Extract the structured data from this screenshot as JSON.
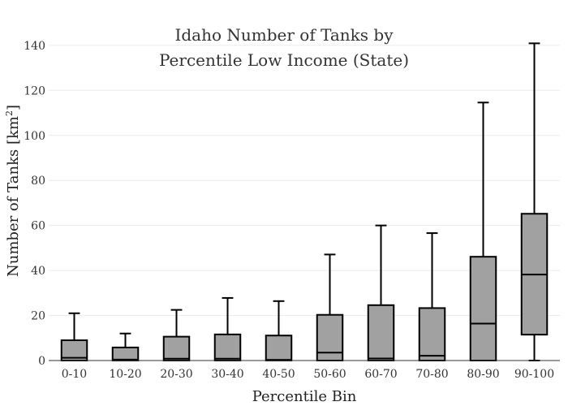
{
  "chart_data": {
    "type": "box",
    "title_line1": "Idaho Number of Tanks by",
    "title_line2": "Percentile Low Income (State)",
    "xlabel": "Percentile Bin",
    "ylabel_main": "Number of Tanks  [km",
    "ylabel_sup": "2",
    "ylabel_end": "]",
    "ylim": [
      0,
      145
    ],
    "yticks": [
      0,
      20,
      40,
      60,
      80,
      100,
      120,
      140
    ],
    "grid": true,
    "colors": {
      "box_fill": "#a1a1a1",
      "box_stroke": "#000000",
      "grid": "#ececec"
    },
    "categories": [
      "0-10",
      "10-20",
      "20-30",
      "30-40",
      "40-50",
      "50-60",
      "60-70",
      "70-80",
      "80-90",
      "90-100"
    ],
    "boxes": [
      {
        "min": 0,
        "q1": 0,
        "median": 1.2,
        "q3": 9,
        "max": 21
      },
      {
        "min": 0,
        "q1": 0,
        "median": 0.4,
        "q3": 5.8,
        "max": 12
      },
      {
        "min": 0,
        "q1": 0,
        "median": 0.8,
        "q3": 10.6,
        "max": 22.5
      },
      {
        "min": 0,
        "q1": 0,
        "median": 0.8,
        "q3": 11.6,
        "max": 27.8
      },
      {
        "min": 0,
        "q1": 0,
        "median": 0.3,
        "q3": 11.1,
        "max": 26.4
      },
      {
        "min": 0,
        "q1": 0,
        "median": 3.5,
        "q3": 20.3,
        "max": 47.1
      },
      {
        "min": 0,
        "q1": 0,
        "median": 0.9,
        "q3": 24.6,
        "max": 60
      },
      {
        "min": 0,
        "q1": 0,
        "median": 2.1,
        "q3": 23.3,
        "max": 56.6
      },
      {
        "min": 0,
        "q1": 0,
        "median": 16.4,
        "q3": 46.1,
        "max": 114.6
      },
      {
        "min": 0,
        "q1": 11.5,
        "median": 38.2,
        "q3": 65.2,
        "max": 140.9
      }
    ]
  }
}
